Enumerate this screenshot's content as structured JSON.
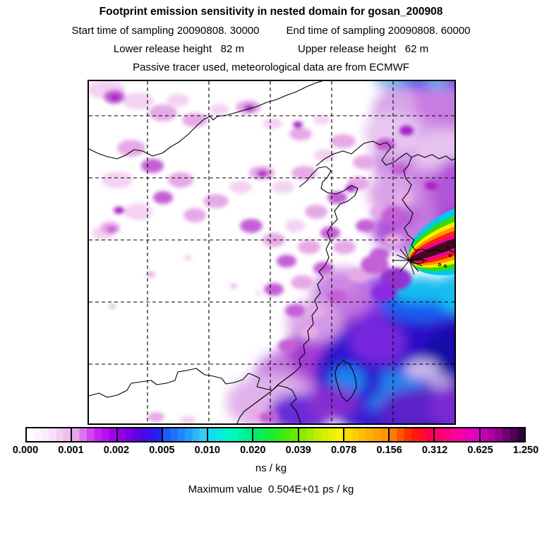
{
  "header": {
    "title": "Footprint emission sensitivity in nested domain for gosan_200908",
    "start_time": "Start time of sampling 20090808. 30000",
    "end_time": "End time of sampling 20090808. 60000",
    "lower_release": "Lower release height   82 m",
    "upper_release": "Upper release height   62 m",
    "tracer_note": "Passive tracer used, meteorological data are from ECMWF"
  },
  "colorbar": {
    "tick_labels": [
      "0.000",
      "0.001",
      "0.002",
      "0.005",
      "0.010",
      "0.020",
      "0.039",
      "0.078",
      "0.156",
      "0.312",
      "0.625",
      "1.250"
    ],
    "units": "ns / kg",
    "max_label": "Maximum value  0.504E+01 ps / kg",
    "segments": [
      {
        "from": "#FFFFFF",
        "via": "#FBE6FA",
        "to": "#F0BCEF"
      },
      {
        "from": "#E8A6E8",
        "via": "#CC2BF2",
        "to": "#A400EC"
      },
      {
        "from": "#9400E6",
        "via": "#5500E0",
        "to": "#2222EE"
      },
      {
        "from": "#1E5CF8",
        "via": "#1E90FF",
        "to": "#38CCF2"
      },
      {
        "from": "#14DCEC",
        "via": "#00FAC8",
        "to": "#00F08C"
      },
      {
        "from": "#00EC64",
        "via": "#22EE22",
        "to": "#66E800"
      },
      {
        "from": "#86EC00",
        "via": "#CCEE00",
        "to": "#FFF200"
      },
      {
        "from": "#FFDC00",
        "via": "#FFB400",
        "to": "#FF9400"
      },
      {
        "from": "#FF7C00",
        "via": "#FF2000",
        "to": "#FF0048"
      },
      {
        "from": "#FA0068",
        "via": "#FF00A0",
        "to": "#DE00C4"
      },
      {
        "from": "#C400B6",
        "via": "#800080",
        "to": "#33003E"
      }
    ]
  },
  "chart_data": {
    "type": "heatmap",
    "title": "Footprint emission sensitivity in nested domain for gosan_200908",
    "station": "gosan_200908",
    "sampling_start": "20090808. 30000",
    "sampling_end": "20090808. 60000",
    "lower_release_height_m": 82,
    "upper_release_height_m": 62,
    "tracer": "Passive tracer used, meteorological data are from ECMWF",
    "colorbar_levels": [
      0.0,
      0.001,
      0.002,
      0.005,
      0.01,
      0.02,
      0.039,
      0.078,
      0.156,
      0.312,
      0.625,
      1.25
    ],
    "units": "ns / kg",
    "maximum_value": "0.504E+01 ps / kg",
    "legend_position": "bottom",
    "grid": "dashed lat/lon gridlines, 6x6 cells",
    "region": "East Asia nested domain: eastern China, Bohai Sea, Korean Peninsula, Yellow Sea, Taiwan",
    "features": [
      "receptor star marker at Gosan (Jeju Island) with darkest maximum-sensitivity streak extending east-northeast",
      "concentric plume bands magenta-red-orange-yellow-green-cyan around dark core",
      "broad blue/cyan sensitivity over Yellow Sea and East China Sea (lower right)",
      "scattered pale magenta patches over inland China (upper left)",
      "white background where sensitivity is near zero (lower left)"
    ]
  }
}
